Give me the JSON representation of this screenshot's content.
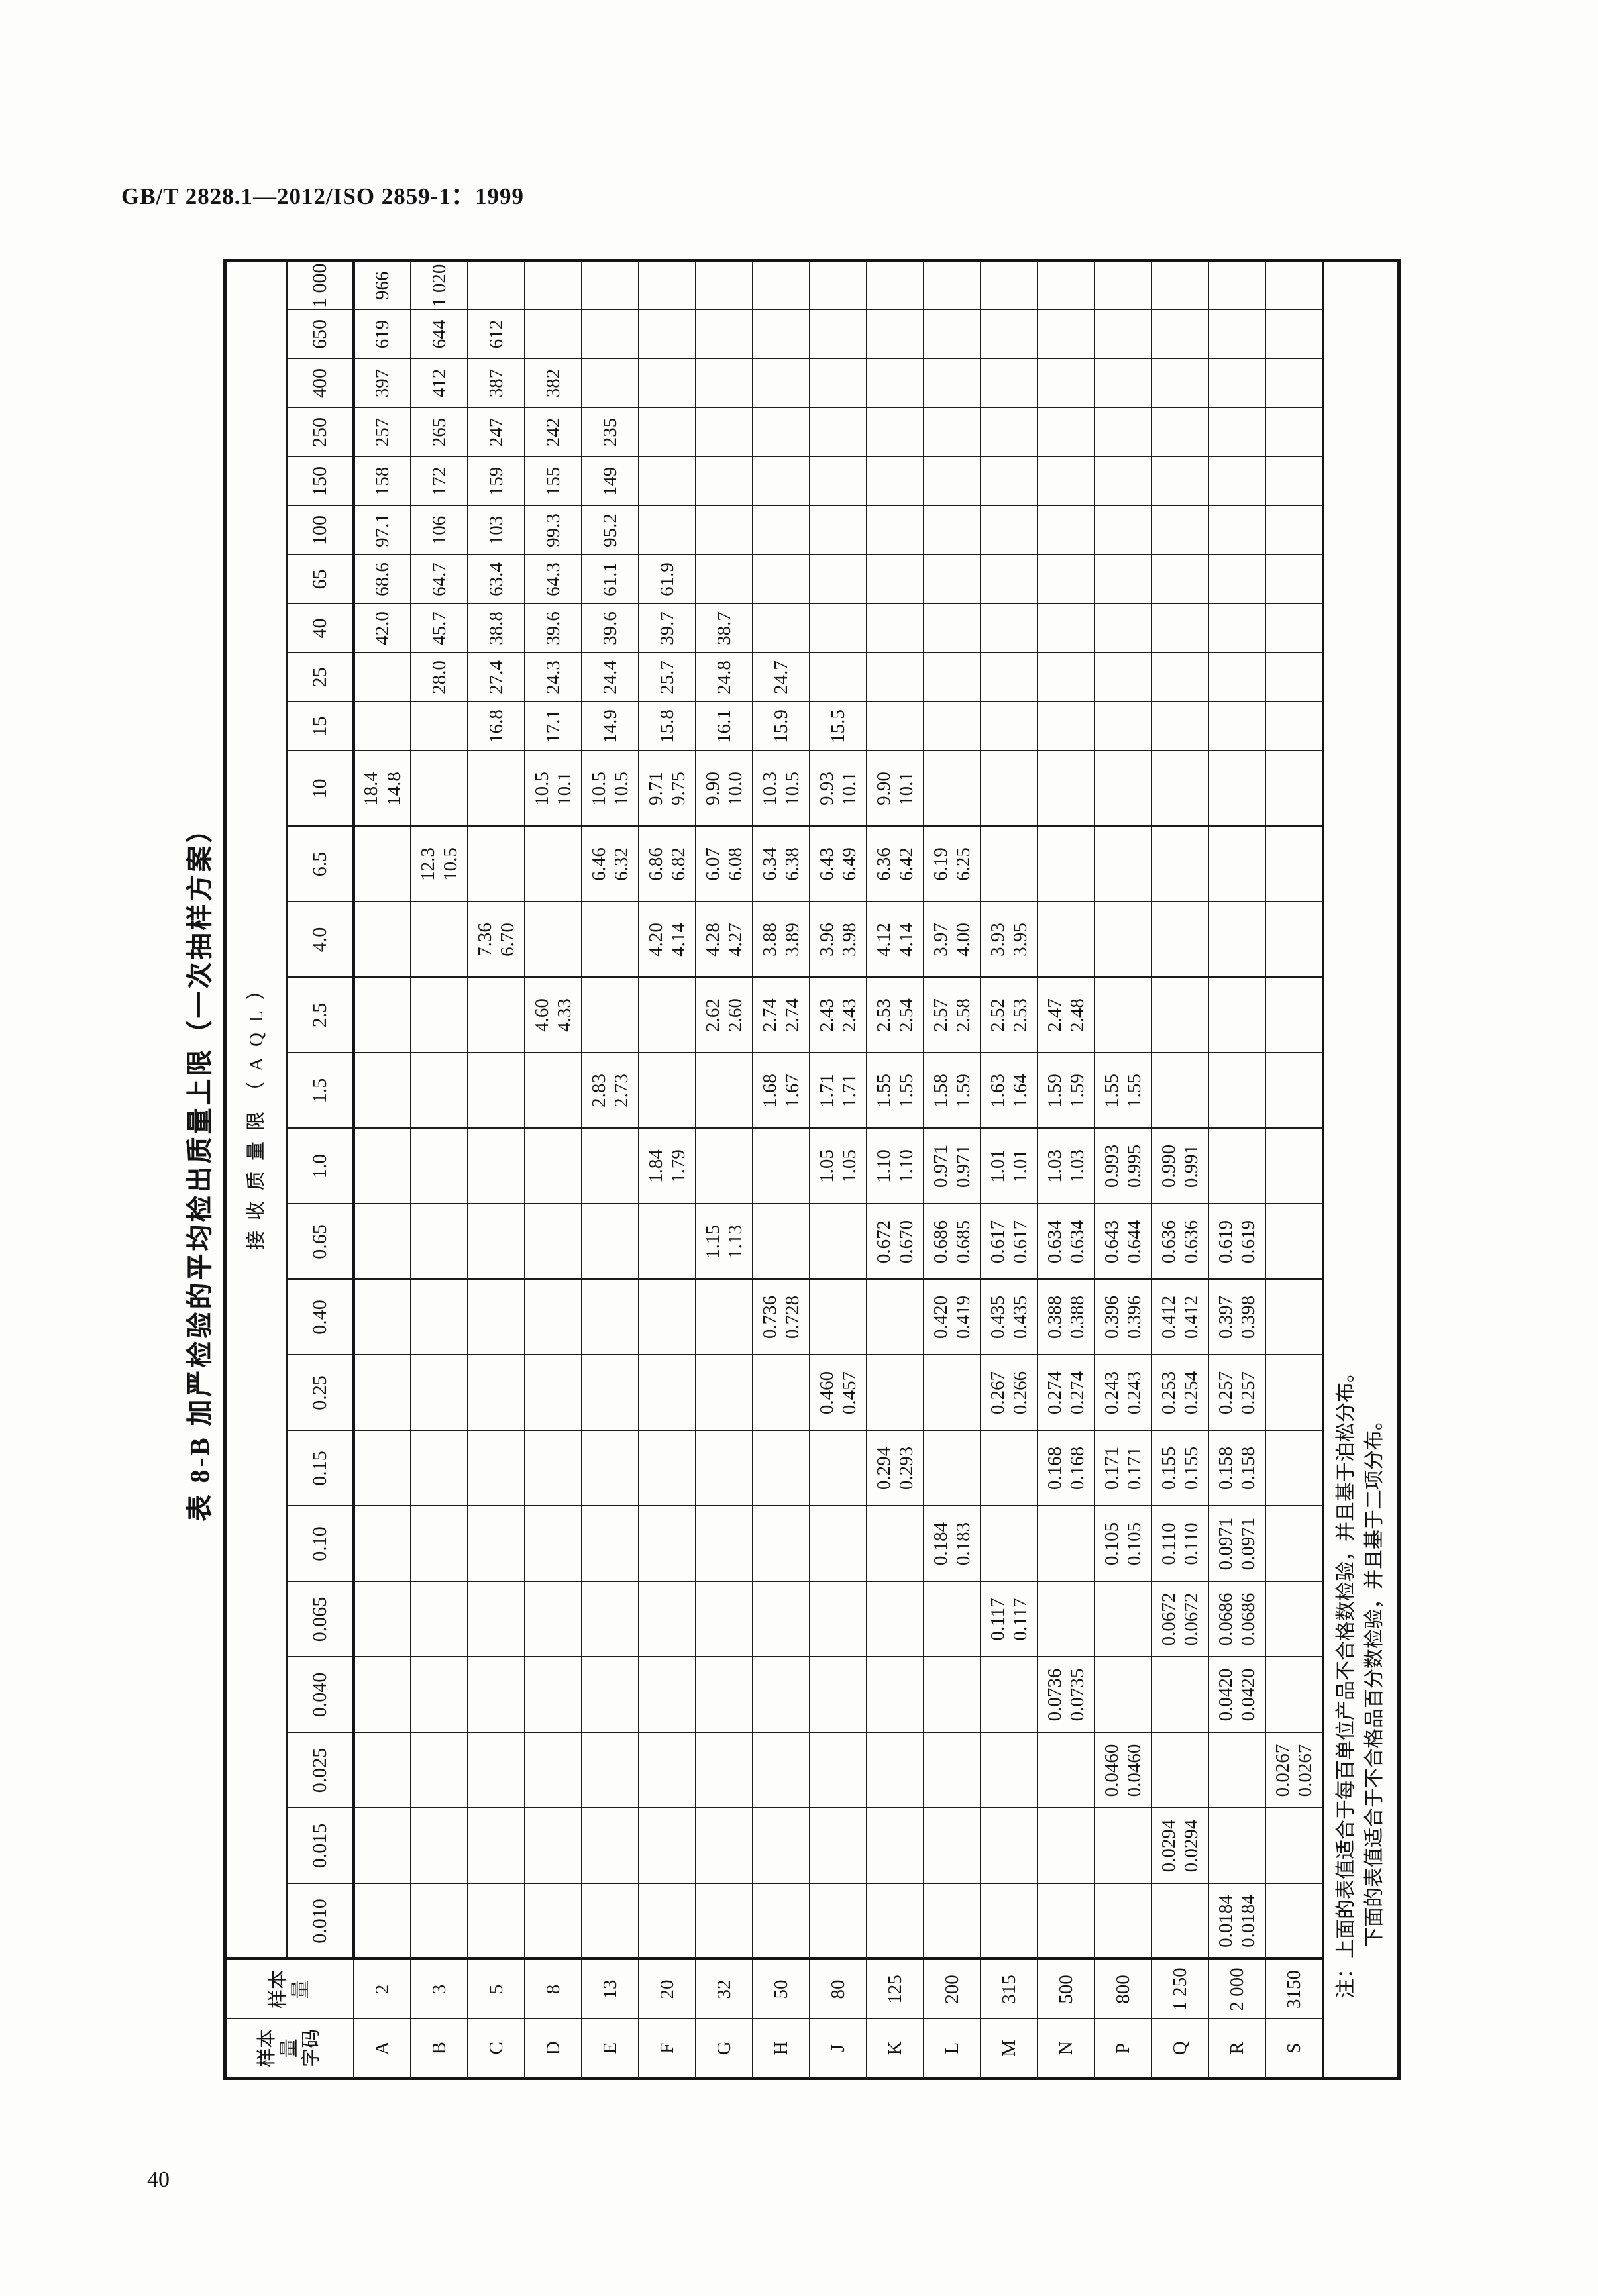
{
  "page": {
    "header": "GB/T 2828.1—2012/ISO 2859-1：1999",
    "page_number": "40"
  },
  "table": {
    "title": "表 8-B  加严检验的平均检出质量上限（一次抽样方案）",
    "aql_header": "接收质量限（AQL）",
    "code_head_lines": [
      "样本",
      "量",
      "字码"
    ],
    "size_head_lines": [
      "样本",
      "量"
    ],
    "aql_values": [
      "0.010",
      "0.015",
      "0.025",
      "0.040",
      "0.065",
      "0.10",
      "0.15",
      "0.25",
      "0.40",
      "0.65",
      "1.0",
      "1.5",
      "2.5",
      "4.0",
      "6.5",
      "10",
      "15",
      "25",
      "40",
      "65",
      "100",
      "150",
      "250",
      "400",
      "650",
      "1 000"
    ],
    "pair_aql_count": 16,
    "rows": [
      {
        "code": "A",
        "size": "2",
        "cells": {
          "10": [
            "18.4",
            "14.8"
          ],
          "40": [
            "42.0"
          ],
          "65": [
            "68.6"
          ],
          "100": [
            "97.1"
          ],
          "150": [
            "158"
          ],
          "250": [
            "257"
          ],
          "400": [
            "397"
          ],
          "650": [
            "619"
          ],
          "1 000": [
            "966"
          ]
        }
      },
      {
        "code": "B",
        "size": "3",
        "cells": {
          "6.5": [
            "12.3",
            "10.5"
          ],
          "25": [
            "28.0"
          ],
          "40": [
            "45.7"
          ],
          "65": [
            "64.7"
          ],
          "100": [
            "106"
          ],
          "150": [
            "172"
          ],
          "250": [
            "265"
          ],
          "400": [
            "412"
          ],
          "650": [
            "644"
          ],
          "1 000": [
            "1 020"
          ]
        }
      },
      {
        "code": "C",
        "size": "5",
        "cells": {
          "4.0": [
            "7.36",
            "6.70"
          ],
          "15": [
            "16.8"
          ],
          "25": [
            "27.4"
          ],
          "40": [
            "38.8"
          ],
          "65": [
            "63.4"
          ],
          "100": [
            "103"
          ],
          "150": [
            "159"
          ],
          "250": [
            "247"
          ],
          "400": [
            "387"
          ],
          "650": [
            "612"
          ]
        }
      },
      {
        "code": "D",
        "size": "8",
        "cells": {
          "2.5": [
            "4.60",
            "4.33"
          ],
          "10": [
            "10.5",
            "10.1"
          ],
          "15": [
            "17.1"
          ],
          "25": [
            "24.3"
          ],
          "40": [
            "39.6"
          ],
          "65": [
            "64.3"
          ],
          "100": [
            "99.3"
          ],
          "150": [
            "155"
          ],
          "250": [
            "242"
          ],
          "400": [
            "382"
          ]
        }
      },
      {
        "code": "E",
        "size": "13",
        "cells": {
          "1.5": [
            "2.83",
            "2.73"
          ],
          "6.5": [
            "6.46",
            "6.32"
          ],
          "10": [
            "10.5",
            "10.5"
          ],
          "15": [
            "14.9"
          ],
          "25": [
            "24.4"
          ],
          "40": [
            "39.6"
          ],
          "65": [
            "61.1"
          ],
          "100": [
            "95.2"
          ],
          "150": [
            "149"
          ],
          "250": [
            "235"
          ]
        }
      },
      {
        "code": "F",
        "size": "20",
        "cells": {
          "1.0": [
            "1.84",
            "1.79"
          ],
          "4.0": [
            "4.20",
            "4.14"
          ],
          "6.5": [
            "6.86",
            "6.82"
          ],
          "10": [
            "9.71",
            "9.75"
          ],
          "15": [
            "15.8"
          ],
          "25": [
            "25.7"
          ],
          "40": [
            "39.7"
          ],
          "65": [
            "61.9"
          ]
        }
      },
      {
        "code": "G",
        "size": "32",
        "cells": {
          "0.65": [
            "1.15",
            "1.13"
          ],
          "2.5": [
            "2.62",
            "2.60"
          ],
          "4.0": [
            "4.28",
            "4.27"
          ],
          "6.5": [
            "6.07",
            "6.08"
          ],
          "10": [
            "9.90",
            "10.0"
          ],
          "15": [
            "16.1"
          ],
          "25": [
            "24.8"
          ],
          "40": [
            "38.7"
          ]
        }
      },
      {
        "code": "H",
        "size": "50",
        "cells": {
          "0.40": [
            "0.736",
            "0.728"
          ],
          "1.5": [
            "1.68",
            "1.67"
          ],
          "2.5": [
            "2.74",
            "2.74"
          ],
          "4.0": [
            "3.88",
            "3.89"
          ],
          "6.5": [
            "6.34",
            "6.38"
          ],
          "10": [
            "10.3",
            "10.5"
          ],
          "15": [
            "15.9"
          ],
          "25": [
            "24.7"
          ]
        }
      },
      {
        "code": "J",
        "size": "80",
        "cells": {
          "0.25": [
            "0.460",
            "0.457"
          ],
          "1.0": [
            "1.05",
            "1.05"
          ],
          "1.5": [
            "1.71",
            "1.71"
          ],
          "2.5": [
            "2.43",
            "2.43"
          ],
          "4.0": [
            "3.96",
            "3.98"
          ],
          "6.5": [
            "6.43",
            "6.49"
          ],
          "10": [
            "9.93",
            "10.1"
          ],
          "15": [
            "15.5"
          ]
        }
      },
      {
        "code": "K",
        "size": "125",
        "cells": {
          "0.15": [
            "0.294",
            "0.293"
          ],
          "0.65": [
            "0.672",
            "0.670"
          ],
          "1.0": [
            "1.10",
            "1.10"
          ],
          "1.5": [
            "1.55",
            "1.55"
          ],
          "2.5": [
            "2.53",
            "2.54"
          ],
          "4.0": [
            "4.12",
            "4.14"
          ],
          "6.5": [
            "6.36",
            "6.42"
          ],
          "10": [
            "9.90",
            "10.1"
          ]
        }
      },
      {
        "code": "L",
        "size": "200",
        "cells": {
          "0.10": [
            "0.184",
            "0.183"
          ],
          "0.40": [
            "0.420",
            "0.419"
          ],
          "0.65": [
            "0.686",
            "0.685"
          ],
          "1.0": [
            "0.971",
            "0.971"
          ],
          "1.5": [
            "1.58",
            "1.59"
          ],
          "2.5": [
            "2.57",
            "2.58"
          ],
          "4.0": [
            "3.97",
            "4.00"
          ],
          "6.5": [
            "6.19",
            "6.25"
          ]
        }
      },
      {
        "code": "M",
        "size": "315",
        "cells": {
          "0.065": [
            "0.117",
            "0.117"
          ],
          "0.25": [
            "0.267",
            "0.266"
          ],
          "0.40": [
            "0.435",
            "0.435"
          ],
          "0.65": [
            "0.617",
            "0.617"
          ],
          "1.0": [
            "1.01",
            "1.01"
          ],
          "1.5": [
            "1.63",
            "1.64"
          ],
          "2.5": [
            "2.52",
            "2.53"
          ],
          "4.0": [
            "3.93",
            "3.95"
          ]
        }
      },
      {
        "code": "N",
        "size": "500",
        "cells": {
          "0.040": [
            "0.0736",
            "0.0735"
          ],
          "0.15": [
            "0.168",
            "0.168"
          ],
          "0.25": [
            "0.274",
            "0.274"
          ],
          "0.40": [
            "0.388",
            "0.388"
          ],
          "0.65": [
            "0.634",
            "0.634"
          ],
          "1.0": [
            "1.03",
            "1.03"
          ],
          "1.5": [
            "1.59",
            "1.59"
          ],
          "2.5": [
            "2.47",
            "2.48"
          ]
        }
      },
      {
        "code": "P",
        "size": "800",
        "cells": {
          "0.025": [
            "0.0460",
            "0.0460"
          ],
          "0.10": [
            "0.105",
            "0.105"
          ],
          "0.15": [
            "0.171",
            "0.171"
          ],
          "0.25": [
            "0.243",
            "0.243"
          ],
          "0.40": [
            "0.396",
            "0.396"
          ],
          "0.65": [
            "0.643",
            "0.644"
          ],
          "1.0": [
            "0.993",
            "0.995"
          ],
          "1.5": [
            "1.55",
            "1.55"
          ]
        }
      },
      {
        "code": "Q",
        "size": "1 250",
        "cells": {
          "0.015": [
            "0.0294",
            "0.0294"
          ],
          "0.065": [
            "0.0672",
            "0.0672"
          ],
          "0.10": [
            "0.110",
            "0.110"
          ],
          "0.15": [
            "0.155",
            "0.155"
          ],
          "0.25": [
            "0.253",
            "0.254"
          ],
          "0.40": [
            "0.412",
            "0.412"
          ],
          "0.65": [
            "0.636",
            "0.636"
          ],
          "1.0": [
            "0.990",
            "0.991"
          ]
        }
      },
      {
        "code": "R",
        "size": "2 000",
        "cells": {
          "0.010": [
            "0.0184",
            "0.0184"
          ],
          "0.040": [
            "0.0420",
            "0.0420"
          ],
          "0.065": [
            "0.0686",
            "0.0686"
          ],
          "0.10": [
            "0.0971",
            "0.0971"
          ],
          "0.15": [
            "0.158",
            "0.158"
          ],
          "0.25": [
            "0.257",
            "0.257"
          ],
          "0.40": [
            "0.397",
            "0.398"
          ],
          "0.65": [
            "0.619",
            "0.619"
          ]
        }
      },
      {
        "code": "S",
        "size": "3150",
        "cells": {
          "0.025": [
            "0.0267",
            "0.0267"
          ]
        }
      }
    ],
    "note_lines": [
      "注：上面的表值适合于每百单位产品不合格数检验，并且基于泊松分布。",
      "下面的表值适合于不合格品百分数检验，并且基于二项分布。"
    ]
  }
}
